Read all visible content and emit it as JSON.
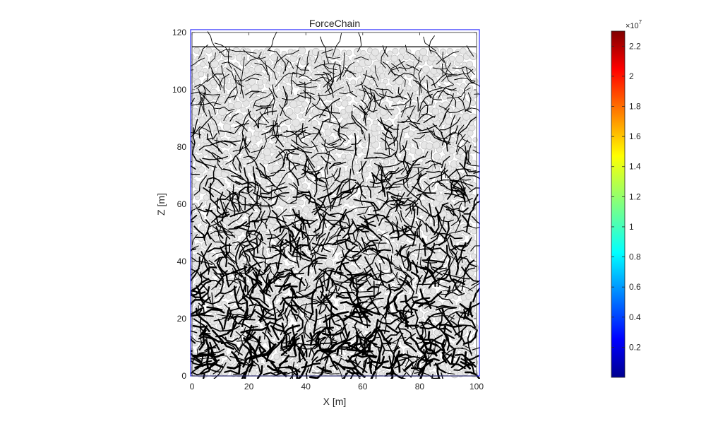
{
  "figure": {
    "title": "ForceChain",
    "xlabel": "X [m]",
    "ylabel": "Z [m]"
  },
  "chart_data": {
    "type": "scatter",
    "title": "ForceChain",
    "xlabel": "X [m]",
    "ylabel": "Z [m]",
    "xlim": [
      0,
      100
    ],
    "ylim": [
      0,
      120
    ],
    "xticks": [
      0,
      20,
      40,
      60,
      80,
      100
    ],
    "yticks": [
      0,
      20,
      40,
      60,
      80,
      100,
      120
    ],
    "xtick_labels": [
      "0",
      "20",
      "40",
      "60",
      "80",
      "100"
    ],
    "ytick_labels": [
      "0",
      "20",
      "40",
      "60",
      "80",
      "100",
      "120"
    ],
    "grid": false,
    "domain_box": {
      "x": [
        -0.5,
        101
      ],
      "z": [
        0,
        121
      ]
    },
    "granular_bed": {
      "x": [
        0,
        100
      ],
      "z_bottom": 0,
      "z_top": 115
    },
    "particle_color": "#c0c0c0",
    "chain_color": "#000000",
    "box_color": "#3030ff",
    "colorbar": {
      "colormap": "jet",
      "range": [
        0,
        2.3
      ],
      "multiplier_base": "×10",
      "multiplier_exp": "7",
      "ticks": [
        0.2,
        0.4,
        0.6,
        0.8,
        1,
        1.2,
        1.4,
        1.6,
        1.8,
        2,
        2.2
      ],
      "tick_labels": [
        "0.2",
        "0.4",
        "0.6",
        "0.8",
        "1",
        "1.2",
        "1.4",
        "1.6",
        "1.8",
        "2",
        "2.2"
      ]
    }
  }
}
